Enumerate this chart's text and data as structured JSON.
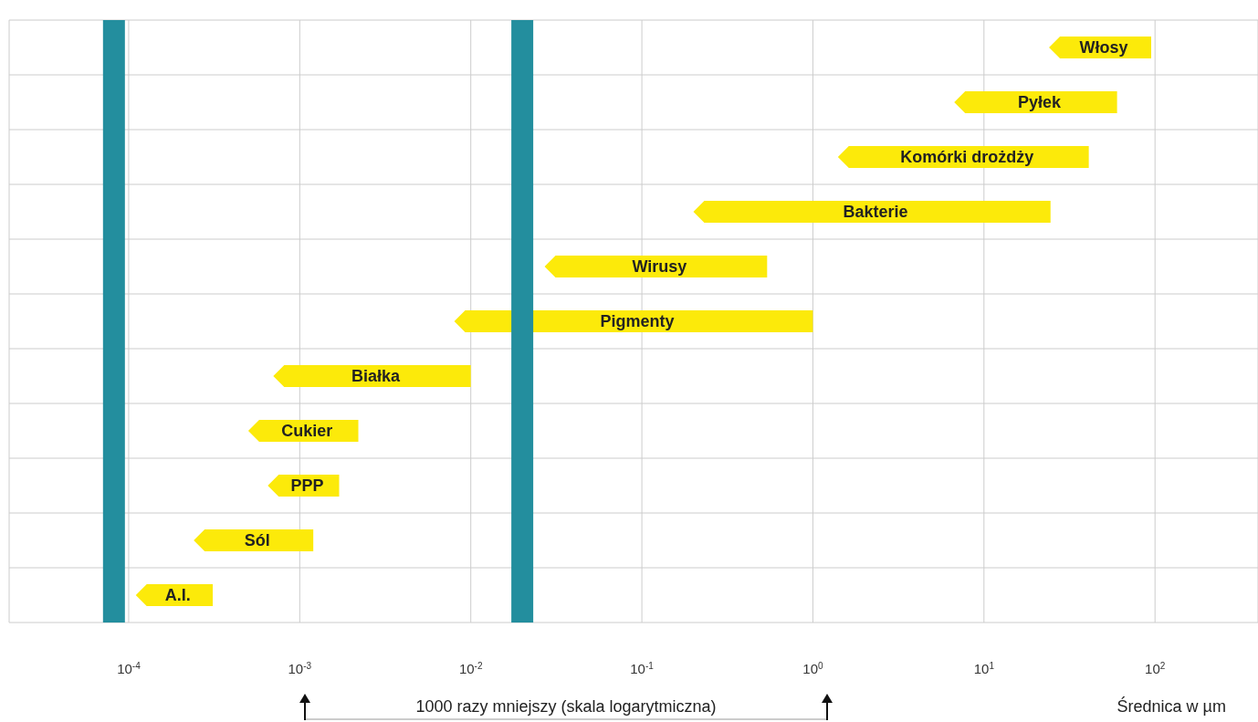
{
  "chart_data": {
    "type": "bar",
    "orientation": "horizontal",
    "categories": [
      "Włosy",
      "Pyłek",
      "Komórki drożdży",
      "Bakterie",
      "Wirusy",
      "Pigmenty",
      "Białka",
      "Cukier",
      "PPP",
      "Sól",
      "A.I."
    ],
    "base": [
      24,
      6.7,
      1.4,
      0.2,
      0.027,
      0.008,
      0.0007,
      0.0005,
      0.00065,
      0.00024,
      0.00011
    ],
    "values": [
      71,
      53.3,
      39.6,
      24.3,
      0.513,
      0.992,
      0.0093,
      0.0017,
      0.00105,
      0.00096,
      0.0002
    ],
    "color": "#fcea0a",
    "log": "x",
    "xlim": [
      2e-05,
      400
    ],
    "xticks": [
      {
        "value": 0.0001,
        "label": "10$^{-4}$"
      },
      {
        "value": 0.001,
        "label": "10$^{-3}$"
      },
      {
        "value": 0.01,
        "label": "10$^{-2}$"
      },
      {
        "value": 0.1,
        "label": "10$^{-1}$"
      },
      {
        "value": 1,
        "label": "10$^{0}$"
      },
      {
        "value": 10,
        "label": "10$^{1}$"
      },
      {
        "value": 100,
        "label": "10$^{2}$"
      }
    ],
    "grid": true,
    "ref_lines": [
      {
        "axis": "x",
        "value": 8.2e-05,
        "color": "#238e9e"
      },
      {
        "axis": "x",
        "value": 0.02,
        "color": "#238e9e"
      }
    ],
    "annotations": [
      "1000 razy mniejszy (skala logarytmiczna)",
      "Średnica w µm"
    ]
  }
}
